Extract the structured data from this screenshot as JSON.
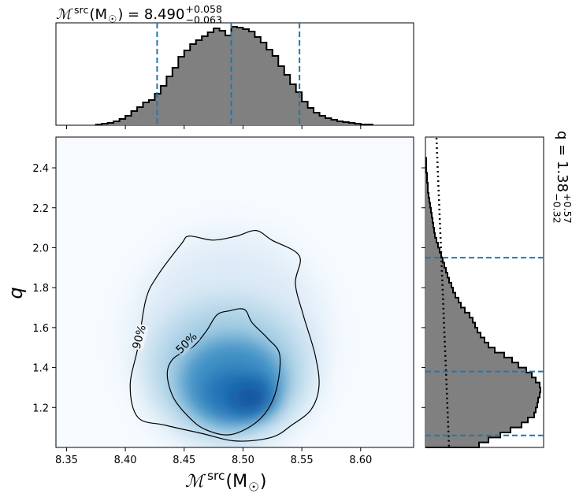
{
  "chart_data": {
    "type": "corner",
    "title": [
      "ℳ",
      "src",
      " (M",
      "☉",
      ") = 8.490",
      "+0.058",
      "−0.063"
    ],
    "xlabel": [
      "ℳ",
      "src",
      " (M",
      "☉",
      ")"
    ],
    "ylabel": "q",
    "right_label": [
      "q = 1.38",
      "+0.57",
      "−0.32"
    ],
    "xlim": [
      8.341,
      8.645
    ],
    "ylim": [
      1.0,
      2.554
    ],
    "xticks": [
      8.35,
      {
        "value": 8.4,
        "label": "8.40"
      },
      8.45,
      {
        "value": 8.5,
        "label": "8.50"
      },
      8.55,
      {
        "value": 8.6,
        "label": "8.60"
      }
    ],
    "yticks": [
      1.2,
      1.4,
      1.6,
      1.8,
      {
        "value": 2,
        "label": "2.0"
      },
      2.2,
      2.4
    ],
    "contours": [
      {
        "label": "90%",
        "x": [
          8.4543,
          8.4743,
          8.4944,
          8.5111,
          8.5245,
          8.5479,
          8.5445,
          8.5512,
          8.5612,
          8.5646,
          8.5579,
          8.5412,
          8.5245,
          8.4944,
          8.4643,
          8.4342,
          8.4108,
          8.4041,
          8.4108,
          8.4175,
          8.4275,
          8.4476
        ],
        "y": [
          2.058,
          2.038,
          2.058,
          2.086,
          2.038,
          1.959,
          1.821,
          1.663,
          1.466,
          1.308,
          1.19,
          1.111,
          1.051,
          1.032,
          1.071,
          1.111,
          1.15,
          1.308,
          1.505,
          1.742,
          1.861,
          2.019
        ]
      },
      {
        "label": "50%",
        "x": [
          8.4877,
          8.5011,
          8.5078,
          8.5211,
          8.5311,
          8.5291,
          8.5211,
          8.5078,
          8.4877,
          8.4676,
          8.4543,
          8.4409,
          8.4356,
          8.4409,
          8.4576,
          8.469,
          8.4777
        ],
        "y": [
          1.683,
          1.691,
          1.624,
          1.545,
          1.466,
          1.308,
          1.19,
          1.111,
          1.063,
          1.091,
          1.15,
          1.249,
          1.367,
          1.446,
          1.505,
          1.584,
          1.663
        ]
      }
    ],
    "top_hist": {
      "color": "#808080",
      "ylim": [
        0,
        130
      ],
      "bins": [
        8.375,
        8.38,
        8.385,
        8.39,
        8.395,
        8.4,
        8.405,
        8.41,
        8.415,
        8.42,
        8.425,
        8.43,
        8.435,
        8.44,
        8.445,
        8.45,
        8.455,
        8.46,
        8.465,
        8.47,
        8.475,
        8.48,
        8.485,
        8.49,
        8.495,
        8.5,
        8.505,
        8.51,
        8.515,
        8.52,
        8.525,
        8.53,
        8.535,
        8.54,
        8.545,
        8.55,
        8.555,
        8.56,
        8.565,
        8.57,
        8.575,
        8.58,
        8.585,
        8.59,
        8.595,
        8.6,
        8.605,
        8.61
      ],
      "values": [
        1,
        2,
        3,
        5,
        8,
        12,
        18,
        23,
        29,
        32,
        40,
        50,
        62,
        73,
        87,
        95,
        103,
        108,
        113,
        118,
        123,
        120,
        114,
        125,
        124,
        122,
        119,
        112,
        105,
        96,
        88,
        75,
        64,
        52,
        42,
        30,
        22,
        16,
        12,
        9,
        7,
        5,
        4,
        3,
        2,
        1,
        1
      ],
      "quantiles": [
        8.427,
        8.49,
        8.548
      ],
      "quantile_color": "#1f77b4"
    },
    "right_hist": {
      "color": "#808080",
      "xlim": [
        0,
        150
      ],
      "bins": [
        1.0,
        1.025,
        1.05,
        1.075,
        1.1,
        1.125,
        1.15,
        1.175,
        1.2,
        1.225,
        1.25,
        1.275,
        1.3,
        1.325,
        1.35,
        1.375,
        1.4,
        1.425,
        1.45,
        1.475,
        1.5,
        1.525,
        1.55,
        1.575,
        1.6,
        1.625,
        1.65,
        1.675,
        1.7,
        1.725,
        1.75,
        1.775,
        1.8,
        1.825,
        1.85,
        1.875,
        1.9,
        1.925,
        1.95,
        1.975,
        2.0,
        2.025,
        2.05,
        2.075,
        2.1,
        2.125,
        2.15,
        2.175,
        2.2,
        2.225,
        2.25,
        2.275,
        2.3,
        2.325,
        2.35,
        2.375,
        2.4,
        2.425,
        2.45
      ],
      "values": [
        68,
        80,
        95,
        108,
        122,
        130,
        138,
        140,
        142,
        143,
        145,
        146,
        145,
        140,
        135,
        128,
        118,
        110,
        100,
        88,
        80,
        75,
        70,
        66,
        63,
        60,
        56,
        50,
        45,
        42,
        38,
        35,
        33,
        30,
        28,
        26,
        24,
        22,
        20,
        18,
        16,
        14,
        12,
        11,
        10,
        9,
        8,
        7,
        6,
        5,
        4,
        3,
        3,
        2,
        2,
        1,
        1,
        1
      ],
      "quantiles": [
        1.06,
        1.38,
        1.95
      ],
      "quantile_color": "#1f77b4",
      "prior": {
        "q": [
          2.55,
          1.0
        ],
        "values": [
          14,
          30
        ]
      }
    }
  }
}
